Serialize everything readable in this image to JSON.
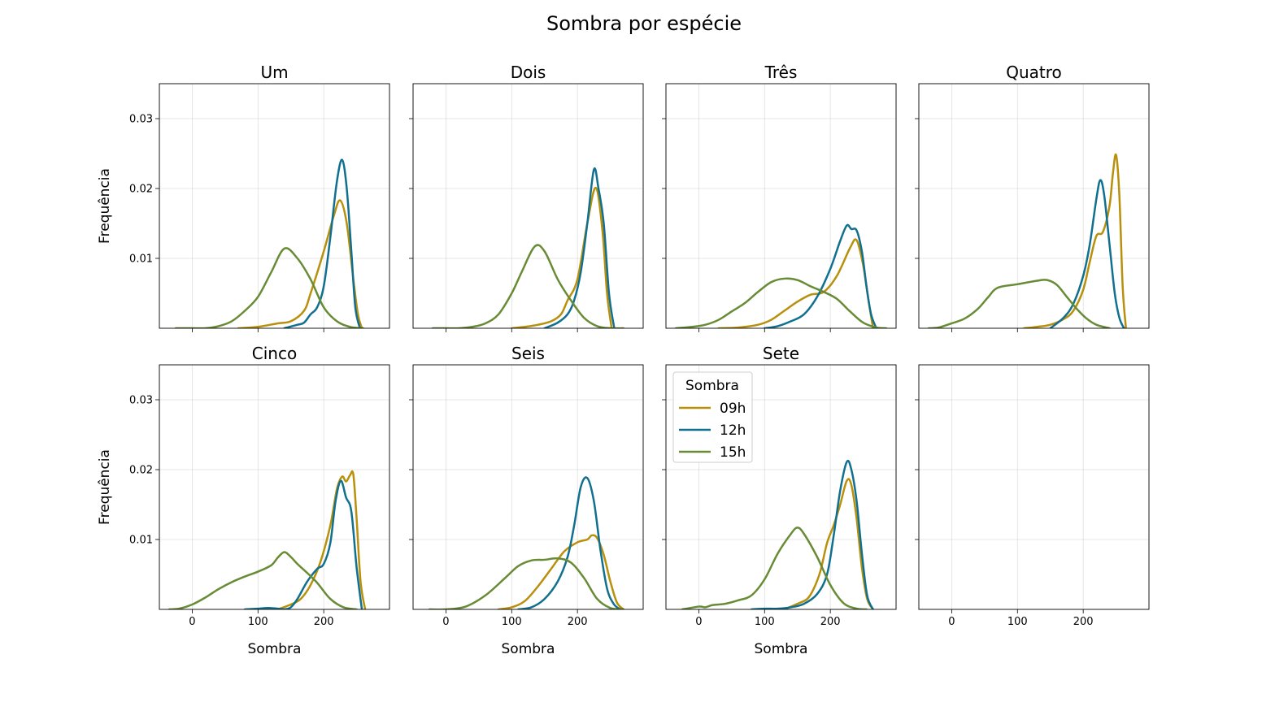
{
  "chart_data": {
    "type": "line",
    "title": "Sombra por espécie",
    "xlabel": "Sombra",
    "ylabel": "Frequência",
    "xlim": [
      -50,
      300
    ],
    "ylim": [
      0,
      0.035
    ],
    "xticks": [
      0,
      100,
      200
    ],
    "yticks": [
      0.01,
      0.02,
      0.03
    ],
    "ytick_labels": [
      "0.01",
      "0.02",
      "0.03"
    ],
    "grid": true,
    "legend": {
      "title": "Sombra",
      "panel": "Sete",
      "placement": "top-left",
      "entries": [
        "09h",
        "12h",
        "15h"
      ]
    },
    "colors": {
      "09h": "#b8900c",
      "12h": "#11708f",
      "15h": "#688b35"
    },
    "panels": [
      {
        "title": "Um",
        "series": [
          {
            "name": "09h",
            "x": [
              70,
              100,
              130,
              150,
              170,
              180,
              200,
              215,
              225,
              235,
              245,
              252,
              258
            ],
            "y": [
              0,
              0.0002,
              0.0007,
              0.001,
              0.0025,
              0.005,
              0.011,
              0.016,
              0.0183,
              0.015,
              0.007,
              0.002,
              0
            ]
          },
          {
            "name": "12h",
            "x": [
              140,
              160,
              170,
              180,
              190,
              200,
              210,
              220,
              228,
              235,
              242,
              248,
              255
            ],
            "y": [
              0,
              0.0005,
              0.0008,
              0.002,
              0.003,
              0.006,
              0.013,
              0.021,
              0.0241,
              0.02,
              0.011,
              0.003,
              0
            ]
          },
          {
            "name": "15h",
            "x": [
              -25,
              0,
              20,
              40,
              60,
              80,
              100,
              120,
              140,
              160,
              180,
              200,
              220,
              240,
              260
            ],
            "y": [
              0,
              0,
              0,
              0.0003,
              0.001,
              0.0025,
              0.0045,
              0.008,
              0.0114,
              0.01,
              0.007,
              0.003,
              0.001,
              0.0002,
              0
            ]
          }
        ]
      },
      {
        "title": "Dois",
        "series": [
          {
            "name": "09h",
            "x": [
              100,
              120,
              140,
              160,
              175,
              185,
              200,
              215,
              228,
              238,
              245,
              252
            ],
            "y": [
              0,
              0.0002,
              0.0005,
              0.001,
              0.002,
              0.004,
              0.007,
              0.015,
              0.0201,
              0.014,
              0.005,
              0
            ]
          },
          {
            "name": "12h",
            "x": [
              150,
              170,
              185,
              195,
              205,
              215,
              225,
              232,
              240,
              248,
              256
            ],
            "y": [
              0,
              0.0008,
              0.002,
              0.004,
              0.008,
              0.015,
              0.0227,
              0.02,
              0.015,
              0.005,
              0
            ]
          },
          {
            "name": "15h",
            "x": [
              -20,
              0,
              20,
              40,
              60,
              80,
              100,
              115,
              135,
              150,
              170,
              190,
              210,
              230,
              250,
              270
            ],
            "y": [
              0,
              0,
              0,
              0.0002,
              0.0007,
              0.002,
              0.005,
              0.008,
              0.0117,
              0.011,
              0.007,
              0.004,
              0.0015,
              0.0003,
              0,
              0
            ]
          }
        ]
      },
      {
        "title": "Três",
        "series": [
          {
            "name": "09h",
            "x": [
              30,
              60,
              90,
              110,
              130,
              150,
              170,
              190,
              210,
              230,
              240,
              250,
              258,
              265
            ],
            "y": [
              0,
              0.0001,
              0.0005,
              0.0012,
              0.0025,
              0.0038,
              0.0048,
              0.0052,
              0.0075,
              0.0115,
              0.0126,
              0.009,
              0.004,
              0
            ]
          },
          {
            "name": "12h",
            "x": [
              100,
              120,
              140,
              160,
              180,
              200,
              215,
              225,
              232,
              240,
              248,
              255,
              262,
              270
            ],
            "y": [
              0,
              0.0003,
              0.001,
              0.002,
              0.0045,
              0.0085,
              0.0125,
              0.0147,
              0.0142,
              0.014,
              0.011,
              0.006,
              0.002,
              0
            ]
          },
          {
            "name": "15h",
            "x": [
              -35,
              -10,
              10,
              30,
              50,
              70,
              90,
              110,
              130,
              150,
              170,
              190,
              210,
              230,
              250,
              270,
              285
            ],
            "y": [
              0,
              0.0002,
              0.0005,
              0.0012,
              0.0024,
              0.0036,
              0.0052,
              0.0066,
              0.0071,
              0.0069,
              0.006,
              0.0052,
              0.0042,
              0.0024,
              0.0008,
              0.0001,
              0
            ]
          }
        ]
      },
      {
        "title": "Quatro",
        "series": [
          {
            "name": "09h",
            "x": [
              110,
              130,
              150,
              170,
              185,
              200,
              210,
              220,
              230,
              240,
              245,
              250,
              255,
              260,
              265
            ],
            "y": [
              0,
              0.0002,
              0.0005,
              0.0013,
              0.0025,
              0.0055,
              0.0095,
              0.0132,
              0.0138,
              0.0175,
              0.022,
              0.0248,
              0.019,
              0.006,
              0
            ]
          },
          {
            "name": "12h",
            "x": [
              150,
              170,
              185,
              200,
              210,
              220,
              226,
              232,
              240,
              248,
              255,
              262
            ],
            "y": [
              0,
              0.0015,
              0.0035,
              0.0075,
              0.012,
              0.0185,
              0.0212,
              0.019,
              0.012,
              0.005,
              0.0015,
              0
            ]
          },
          {
            "name": "15h",
            "x": [
              -35,
              -20,
              0,
              20,
              40,
              55,
              70,
              100,
              130,
              145,
              160,
              175,
              190,
              205,
              220,
              240
            ],
            "y": [
              0,
              0.0001,
              0.0007,
              0.0014,
              0.0028,
              0.0044,
              0.0058,
              0.0063,
              0.0068,
              0.0069,
              0.0062,
              0.0045,
              0.0028,
              0.0014,
              0.0005,
              0
            ]
          }
        ]
      },
      {
        "title": "Cinco",
        "series": [
          {
            "name": "09h",
            "x": [
              130,
              150,
              165,
              180,
              195,
              210,
              220,
              228,
              234,
              240,
              245,
              250,
              256,
              263
            ],
            "y": [
              0,
              0.0007,
              0.0015,
              0.0035,
              0.0068,
              0.012,
              0.0172,
              0.019,
              0.0183,
              0.0192,
              0.0193,
              0.013,
              0.004,
              0
            ]
          },
          {
            "name": "12h",
            "x": [
              80,
              100,
              115,
              130,
              140,
              150,
              160,
              175,
              190,
              200,
              210,
              218,
              226,
              234,
              242,
              250,
              258
            ],
            "y": [
              0,
              0.0001,
              0.0002,
              0.0001,
              0,
              0.0003,
              0.0015,
              0.004,
              0.0058,
              0.0065,
              0.0095,
              0.0155,
              0.0184,
              0.016,
              0.014,
              0.006,
              0
            ]
          },
          {
            "name": "15h",
            "x": [
              -35,
              -20,
              0,
              20,
              40,
              60,
              80,
              100,
              120,
              130,
              140,
              150,
              160,
              175,
              190,
              210,
              230,
              250
            ],
            "y": [
              0,
              0.0001,
              0.0007,
              0.0017,
              0.0029,
              0.0039,
              0.0047,
              0.0054,
              0.0063,
              0.0074,
              0.0082,
              0.0075,
              0.0065,
              0.0052,
              0.0038,
              0.0015,
              0.0003,
              0
            ]
          }
        ]
      },
      {
        "title": "Seis",
        "series": [
          {
            "name": "09h",
            "x": [
              80,
              100,
              120,
              140,
              160,
              180,
              200,
              215,
              222,
              230,
              240,
              250,
              260,
              270
            ],
            "y": [
              0,
              0.0003,
              0.0012,
              0.0033,
              0.0058,
              0.0083,
              0.0096,
              0.01,
              0.0106,
              0.0102,
              0.0078,
              0.004,
              0.001,
              0
            ]
          },
          {
            "name": "12h",
            "x": [
              110,
              130,
              150,
              170,
              185,
              195,
              205,
              215,
              225,
              235,
              245,
              255,
              265
            ],
            "y": [
              0,
              0.0003,
              0.0015,
              0.004,
              0.0075,
              0.012,
              0.0175,
              0.0188,
              0.0155,
              0.0085,
              0.003,
              0.0008,
              0
            ]
          },
          {
            "name": "15h",
            "x": [
              -25,
              0,
              30,
              60,
              90,
              110,
              130,
              150,
              170,
              190,
              210,
              230,
              250,
              270
            ],
            "y": [
              0,
              0,
              0.0004,
              0.002,
              0.0045,
              0.0062,
              0.007,
              0.0071,
              0.0073,
              0.0067,
              0.0045,
              0.0015,
              0.0002,
              0
            ]
          }
        ]
      },
      {
        "title": "Sete",
        "series": [
          {
            "name": "09h",
            "x": [
              130,
              150,
              165,
              175,
              185,
              195,
              205,
              215,
              225,
              232,
              240,
              248,
              256,
              265
            ],
            "y": [
              0,
              0.0008,
              0.0015,
              0.003,
              0.0055,
              0.0095,
              0.012,
              0.015,
              0.0184,
              0.0178,
              0.013,
              0.006,
              0.0015,
              0
            ]
          },
          {
            "name": "12h",
            "x": [
              80,
              100,
              120,
              140,
              160,
              180,
              195,
              205,
              215,
              225,
              232,
              240,
              248,
              256,
              265
            ],
            "y": [
              0,
              0.0001,
              0.0001,
              0.0003,
              0.0008,
              0.0022,
              0.005,
              0.0105,
              0.017,
              0.0211,
              0.02,
              0.0155,
              0.008,
              0.002,
              0
            ]
          },
          {
            "name": "15h",
            "x": [
              -25,
              0,
              10,
              20,
              40,
              60,
              80,
              100,
              120,
              140,
              150,
              160,
              180,
              200,
              220,
              240,
              255
            ],
            "y": [
              0,
              0.0004,
              0.0003,
              0.0006,
              0.0008,
              0.0013,
              0.002,
              0.0043,
              0.008,
              0.0108,
              0.0117,
              0.0108,
              0.0075,
              0.0035,
              0.0009,
              0.0001,
              0
            ]
          }
        ]
      },
      {
        "title": "",
        "series": []
      }
    ]
  }
}
